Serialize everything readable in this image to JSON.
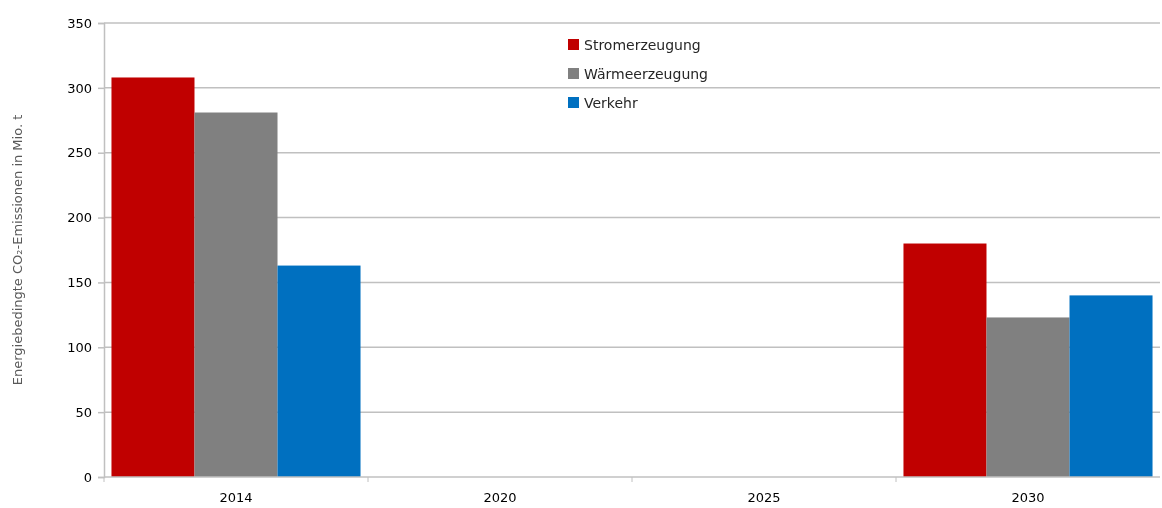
{
  "chart_data": {
    "type": "bar",
    "ylabel": "Energiebedingte CO₂-Emissionen in Mio. t",
    "categories": [
      "2014",
      "2020",
      "2025",
      "2030"
    ],
    "series": [
      {
        "name": "Stromerzeugung",
        "color": "#c00000",
        "values": [
          308,
          null,
          null,
          180
        ]
      },
      {
        "name": "Wärmeerzeugung",
        "color": "#808080",
        "values": [
          281,
          null,
          null,
          123
        ]
      },
      {
        "name": "Verkehr",
        "color": "#0070c0",
        "values": [
          163,
          null,
          null,
          140
        ]
      }
    ],
    "ylim": [
      0,
      350
    ],
    "yticks": [
      0,
      50,
      100,
      150,
      200,
      250,
      300,
      350
    ],
    "grid": "y",
    "legend": "top"
  }
}
